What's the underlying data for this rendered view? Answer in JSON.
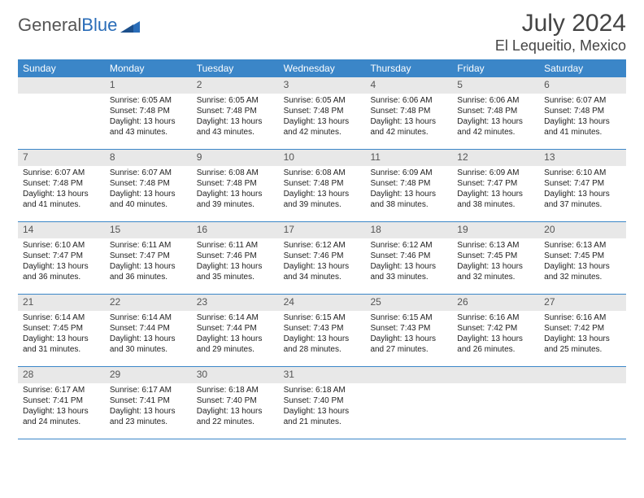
{
  "logo": {
    "word1": "General",
    "word2": "Blue"
  },
  "title": "July 2024",
  "location": "El Lequeitio, Mexico",
  "colors": {
    "header_bg": "#3b86c8",
    "header_text": "#ffffff",
    "daynum_bg": "#e8e8e8",
    "border": "#3b86c8",
    "text": "#222222"
  },
  "dayNames": [
    "Sunday",
    "Monday",
    "Tuesday",
    "Wednesday",
    "Thursday",
    "Friday",
    "Saturday"
  ],
  "weeks": [
    [
      {
        "n": "",
        "lines": [
          "",
          "",
          "",
          ""
        ]
      },
      {
        "n": "1",
        "lines": [
          "Sunrise: 6:05 AM",
          "Sunset: 7:48 PM",
          "Daylight: 13 hours",
          "and 43 minutes."
        ]
      },
      {
        "n": "2",
        "lines": [
          "Sunrise: 6:05 AM",
          "Sunset: 7:48 PM",
          "Daylight: 13 hours",
          "and 43 minutes."
        ]
      },
      {
        "n": "3",
        "lines": [
          "Sunrise: 6:05 AM",
          "Sunset: 7:48 PM",
          "Daylight: 13 hours",
          "and 42 minutes."
        ]
      },
      {
        "n": "4",
        "lines": [
          "Sunrise: 6:06 AM",
          "Sunset: 7:48 PM",
          "Daylight: 13 hours",
          "and 42 minutes."
        ]
      },
      {
        "n": "5",
        "lines": [
          "Sunrise: 6:06 AM",
          "Sunset: 7:48 PM",
          "Daylight: 13 hours",
          "and 42 minutes."
        ]
      },
      {
        "n": "6",
        "lines": [
          "Sunrise: 6:07 AM",
          "Sunset: 7:48 PM",
          "Daylight: 13 hours",
          "and 41 minutes."
        ]
      }
    ],
    [
      {
        "n": "7",
        "lines": [
          "Sunrise: 6:07 AM",
          "Sunset: 7:48 PM",
          "Daylight: 13 hours",
          "and 41 minutes."
        ]
      },
      {
        "n": "8",
        "lines": [
          "Sunrise: 6:07 AM",
          "Sunset: 7:48 PM",
          "Daylight: 13 hours",
          "and 40 minutes."
        ]
      },
      {
        "n": "9",
        "lines": [
          "Sunrise: 6:08 AM",
          "Sunset: 7:48 PM",
          "Daylight: 13 hours",
          "and 39 minutes."
        ]
      },
      {
        "n": "10",
        "lines": [
          "Sunrise: 6:08 AM",
          "Sunset: 7:48 PM",
          "Daylight: 13 hours",
          "and 39 minutes."
        ]
      },
      {
        "n": "11",
        "lines": [
          "Sunrise: 6:09 AM",
          "Sunset: 7:48 PM",
          "Daylight: 13 hours",
          "and 38 minutes."
        ]
      },
      {
        "n": "12",
        "lines": [
          "Sunrise: 6:09 AM",
          "Sunset: 7:47 PM",
          "Daylight: 13 hours",
          "and 38 minutes."
        ]
      },
      {
        "n": "13",
        "lines": [
          "Sunrise: 6:10 AM",
          "Sunset: 7:47 PM",
          "Daylight: 13 hours",
          "and 37 minutes."
        ]
      }
    ],
    [
      {
        "n": "14",
        "lines": [
          "Sunrise: 6:10 AM",
          "Sunset: 7:47 PM",
          "Daylight: 13 hours",
          "and 36 minutes."
        ]
      },
      {
        "n": "15",
        "lines": [
          "Sunrise: 6:11 AM",
          "Sunset: 7:47 PM",
          "Daylight: 13 hours",
          "and 36 minutes."
        ]
      },
      {
        "n": "16",
        "lines": [
          "Sunrise: 6:11 AM",
          "Sunset: 7:46 PM",
          "Daylight: 13 hours",
          "and 35 minutes."
        ]
      },
      {
        "n": "17",
        "lines": [
          "Sunrise: 6:12 AM",
          "Sunset: 7:46 PM",
          "Daylight: 13 hours",
          "and 34 minutes."
        ]
      },
      {
        "n": "18",
        "lines": [
          "Sunrise: 6:12 AM",
          "Sunset: 7:46 PM",
          "Daylight: 13 hours",
          "and 33 minutes."
        ]
      },
      {
        "n": "19",
        "lines": [
          "Sunrise: 6:13 AM",
          "Sunset: 7:45 PM",
          "Daylight: 13 hours",
          "and 32 minutes."
        ]
      },
      {
        "n": "20",
        "lines": [
          "Sunrise: 6:13 AM",
          "Sunset: 7:45 PM",
          "Daylight: 13 hours",
          "and 32 minutes."
        ]
      }
    ],
    [
      {
        "n": "21",
        "lines": [
          "Sunrise: 6:14 AM",
          "Sunset: 7:45 PM",
          "Daylight: 13 hours",
          "and 31 minutes."
        ]
      },
      {
        "n": "22",
        "lines": [
          "Sunrise: 6:14 AM",
          "Sunset: 7:44 PM",
          "Daylight: 13 hours",
          "and 30 minutes."
        ]
      },
      {
        "n": "23",
        "lines": [
          "Sunrise: 6:14 AM",
          "Sunset: 7:44 PM",
          "Daylight: 13 hours",
          "and 29 minutes."
        ]
      },
      {
        "n": "24",
        "lines": [
          "Sunrise: 6:15 AM",
          "Sunset: 7:43 PM",
          "Daylight: 13 hours",
          "and 28 minutes."
        ]
      },
      {
        "n": "25",
        "lines": [
          "Sunrise: 6:15 AM",
          "Sunset: 7:43 PM",
          "Daylight: 13 hours",
          "and 27 minutes."
        ]
      },
      {
        "n": "26",
        "lines": [
          "Sunrise: 6:16 AM",
          "Sunset: 7:42 PM",
          "Daylight: 13 hours",
          "and 26 minutes."
        ]
      },
      {
        "n": "27",
        "lines": [
          "Sunrise: 6:16 AM",
          "Sunset: 7:42 PM",
          "Daylight: 13 hours",
          "and 25 minutes."
        ]
      }
    ],
    [
      {
        "n": "28",
        "lines": [
          "Sunrise: 6:17 AM",
          "Sunset: 7:41 PM",
          "Daylight: 13 hours",
          "and 24 minutes."
        ]
      },
      {
        "n": "29",
        "lines": [
          "Sunrise: 6:17 AM",
          "Sunset: 7:41 PM",
          "Daylight: 13 hours",
          "and 23 minutes."
        ]
      },
      {
        "n": "30",
        "lines": [
          "Sunrise: 6:18 AM",
          "Sunset: 7:40 PM",
          "Daylight: 13 hours",
          "and 22 minutes."
        ]
      },
      {
        "n": "31",
        "lines": [
          "Sunrise: 6:18 AM",
          "Sunset: 7:40 PM",
          "Daylight: 13 hours",
          "and 21 minutes."
        ]
      },
      {
        "n": "",
        "lines": [
          "",
          "",
          "",
          ""
        ]
      },
      {
        "n": "",
        "lines": [
          "",
          "",
          "",
          ""
        ]
      },
      {
        "n": "",
        "lines": [
          "",
          "",
          "",
          ""
        ]
      }
    ]
  ]
}
